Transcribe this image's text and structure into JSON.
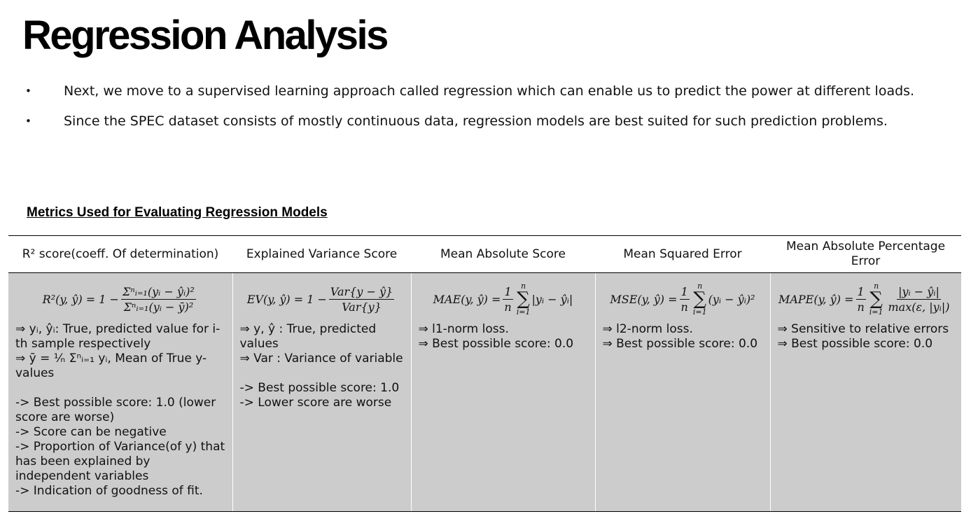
{
  "title": "Regression Analysis",
  "bullets": [
    "Next, we move to a supervised learning approach called regression which can enable us to predict the power at different loads.",
    "Since the SPEC dataset consists of mostly continuous data, regression models are best suited for such prediction problems."
  ],
  "bullet_symbol": "•",
  "subheading": "Metrics Used for Evaluating Regression Models",
  "table": {
    "headers": [
      "R² score(coeff. Of determination)",
      "Explained Variance Score",
      "Mean Absolute Score",
      "Mean Squared Error",
      "Mean Absolute Percentage Error"
    ],
    "r2": {
      "lhs": "R²(y, ŷ) = 1 −",
      "num": "Σⁿᵢ₌₁(yᵢ − ŷᵢ)²",
      "den": "Σⁿᵢ₌₁(yᵢ − ȳ)²",
      "notes": "⇒ yᵢ, ŷᵢ: True, predicted value for i-th sample respectively\n⇒ ȳ = ¹⁄ₙ Σⁿᵢ₌₁ yᵢ, Mean of True y-values\n\n-> Best possible score: 1.0 (lower score are worse)\n-> Score can be negative\n-> Proportion of Variance(of y) that has been explained by independent variables\n-> Indication of goodness of fit."
    },
    "ev": {
      "lhs": "EV(y, ŷ) = 1 −",
      "num": "Var{y − ŷ}",
      "den": "Var{y}",
      "notes": "⇒ y, ŷ : True, predicted values\n⇒ Var : Variance of variable\n\n-> Best possible score: 1.0\n-> Lower score are worse"
    },
    "mae": {
      "lhs": "MAE(y, ŷ) =",
      "num": "1",
      "den": "n",
      "sum_top": "n",
      "sum_bottom": "i=1",
      "term": "|yᵢ − ŷᵢ|",
      "notes": "⇒ l1-norm loss.\n⇒ Best possible score: 0.0"
    },
    "mse": {
      "lhs": "MSE(y, ŷ) =",
      "num": "1",
      "den": "n",
      "sum_top": "n",
      "sum_bottom": "i=1",
      "term": "(yᵢ − ŷᵢ)²",
      "notes": "⇒ l2-norm loss.\n⇒ Best possible score: 0.0"
    },
    "mape": {
      "lhs": "MAPE(y, ŷ) =",
      "num": "1",
      "den": "n",
      "sum_top": "n",
      "sum_bottom": "i=1",
      "term_num": "|yᵢ − ŷᵢ|",
      "term_den": "max(ε, |yᵢ|)",
      "notes": "⇒ Sensitive to relative errors\n⇒ Best possible score: 0.0"
    }
  },
  "colors": {
    "cell_background": "#cccccc",
    "text": "#111111",
    "title": "#000000"
  }
}
